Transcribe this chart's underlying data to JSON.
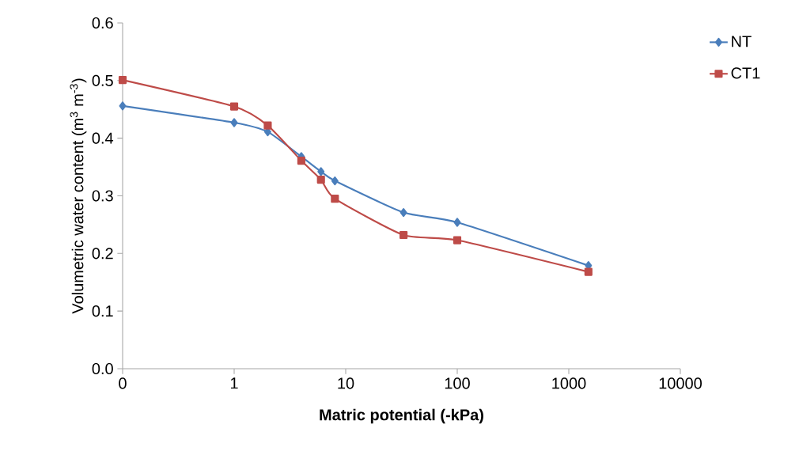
{
  "chart_data": {
    "type": "line",
    "xlabel": "Matric potential (-kPa)",
    "ylabel": "Volumetric water content (m$^{3}$ m$^{-3}$)",
    "x": [
      0.1,
      1,
      2,
      4,
      6,
      8,
      33,
      100,
      1500
    ],
    "series": [
      {
        "name": "NT",
        "color": "#4a7ebb",
        "marker": "diamond",
        "values": [
          0.456,
          0.427,
          0.411,
          0.368,
          0.342,
          0.326,
          0.271,
          0.254,
          0.179
        ]
      },
      {
        "name": "CT1",
        "color": "#be4b48",
        "marker": "square",
        "values": [
          0.501,
          0.455,
          0.422,
          0.361,
          0.328,
          0.295,
          0.232,
          0.223,
          0.168
        ]
      }
    ],
    "log": "x",
    "xlim": [
      0.1,
      10000
    ],
    "ylim": [
      0,
      0.6
    ],
    "xticks": [
      {
        "value": 0.1,
        "label": "0"
      },
      1,
      10,
      100,
      1000,
      10000
    ],
    "yticks": [
      {
        "value": 0,
        "label": "0.0"
      },
      0.1,
      0.2,
      0.3,
      0.4,
      0.5,
      0.6
    ],
    "grid": false,
    "legend": "top right"
  }
}
